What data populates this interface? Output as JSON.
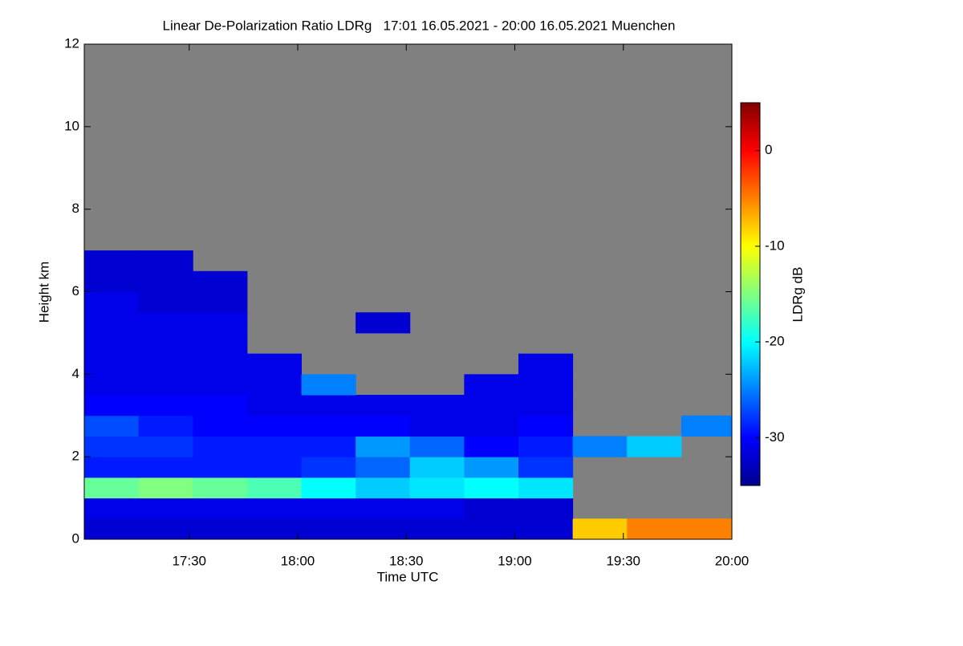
{
  "chart_data": {
    "type": "heatmap",
    "title": "Linear De-Polarization Ratio LDRg   17:01 16.05.2021 - 20:00 16.05.2021 Muenchen",
    "xlabel": "Time UTC",
    "ylabel": "Height km",
    "colorbar_label": "LDRg dB",
    "xlim": [
      "17:01",
      "20:00"
    ],
    "xticks": [
      "17:30",
      "18:00",
      "18:30",
      "19:00",
      "19:30",
      "20:00"
    ],
    "ylim": [
      0,
      12
    ],
    "yticks": [
      0,
      2,
      4,
      6,
      8,
      10,
      12
    ],
    "clim": [
      -35,
      5
    ],
    "cticks": [
      -30,
      -20,
      -10,
      0
    ],
    "colormap": [
      "#00008f",
      "#0000ff",
      "#0080ff",
      "#00ffff",
      "#80ff80",
      "#ffff00",
      "#ff8000",
      "#ff0000",
      "#800000"
    ],
    "missing_color": "#808080",
    "x_bins": [
      "17:01",
      "17:16",
      "17:31",
      "17:46",
      "18:01",
      "18:16",
      "18:31",
      "18:46",
      "19:01",
      "19:16",
      "19:31",
      "19:46",
      "20:00"
    ],
    "y_bins": [
      0,
      0.5,
      1,
      1.5,
      2,
      2.5,
      3,
      3.5,
      4,
      4.5,
      5,
      5.5,
      6,
      6.5,
      7
    ],
    "values": [
      [
        -32,
        -32,
        -32,
        -32,
        -32,
        -32,
        -32,
        -32,
        -32,
        -8,
        -5,
        -5
      ],
      [
        -31,
        -31,
        -31,
        -31,
        -31,
        -31,
        -31,
        -32,
        -32,
        null,
        null,
        null
      ],
      [
        -16,
        -15,
        -16,
        -17,
        -20,
        -22,
        -21,
        -20,
        -21,
        null,
        null,
        null
      ],
      [
        -29,
        -29,
        -29,
        -29,
        -28,
        -26,
        -22,
        -24,
        -28,
        null,
        null,
        null
      ],
      [
        -28,
        -28,
        -29,
        -29,
        -29,
        -24,
        -26,
        -30,
        -29,
        -25,
        -22,
        null
      ],
      [
        -27,
        -29,
        -30,
        -30,
        -30,
        -30,
        -31,
        -31,
        -30,
        null,
        null,
        -25
      ],
      [
        -30,
        -30,
        -30,
        -31,
        -31,
        -31,
        -31,
        -31,
        -31,
        null,
        null,
        null
      ],
      [
        -31,
        -31,
        -31,
        -31,
        -25,
        null,
        null,
        -31,
        -31,
        null,
        null,
        null
      ],
      [
        -31,
        -31,
        -31,
        -31,
        null,
        null,
        null,
        null,
        -31,
        null,
        null,
        null
      ],
      [
        -31,
        -31,
        -31,
        null,
        null,
        null,
        null,
        null,
        null,
        null,
        null,
        null
      ],
      [
        -31,
        -31,
        -31,
        null,
        null,
        -32,
        null,
        null,
        null,
        null,
        null,
        null
      ],
      [
        -31,
        -32,
        -32,
        null,
        null,
        null,
        null,
        null,
        null,
        null,
        null,
        null
      ],
      [
        -32,
        -32,
        -32,
        null,
        null,
        null,
        null,
        null,
        null,
        null,
        null,
        null
      ],
      [
        -32,
        -32,
        null,
        null,
        null,
        null,
        null,
        null,
        null,
        null,
        null,
        null
      ]
    ]
  }
}
